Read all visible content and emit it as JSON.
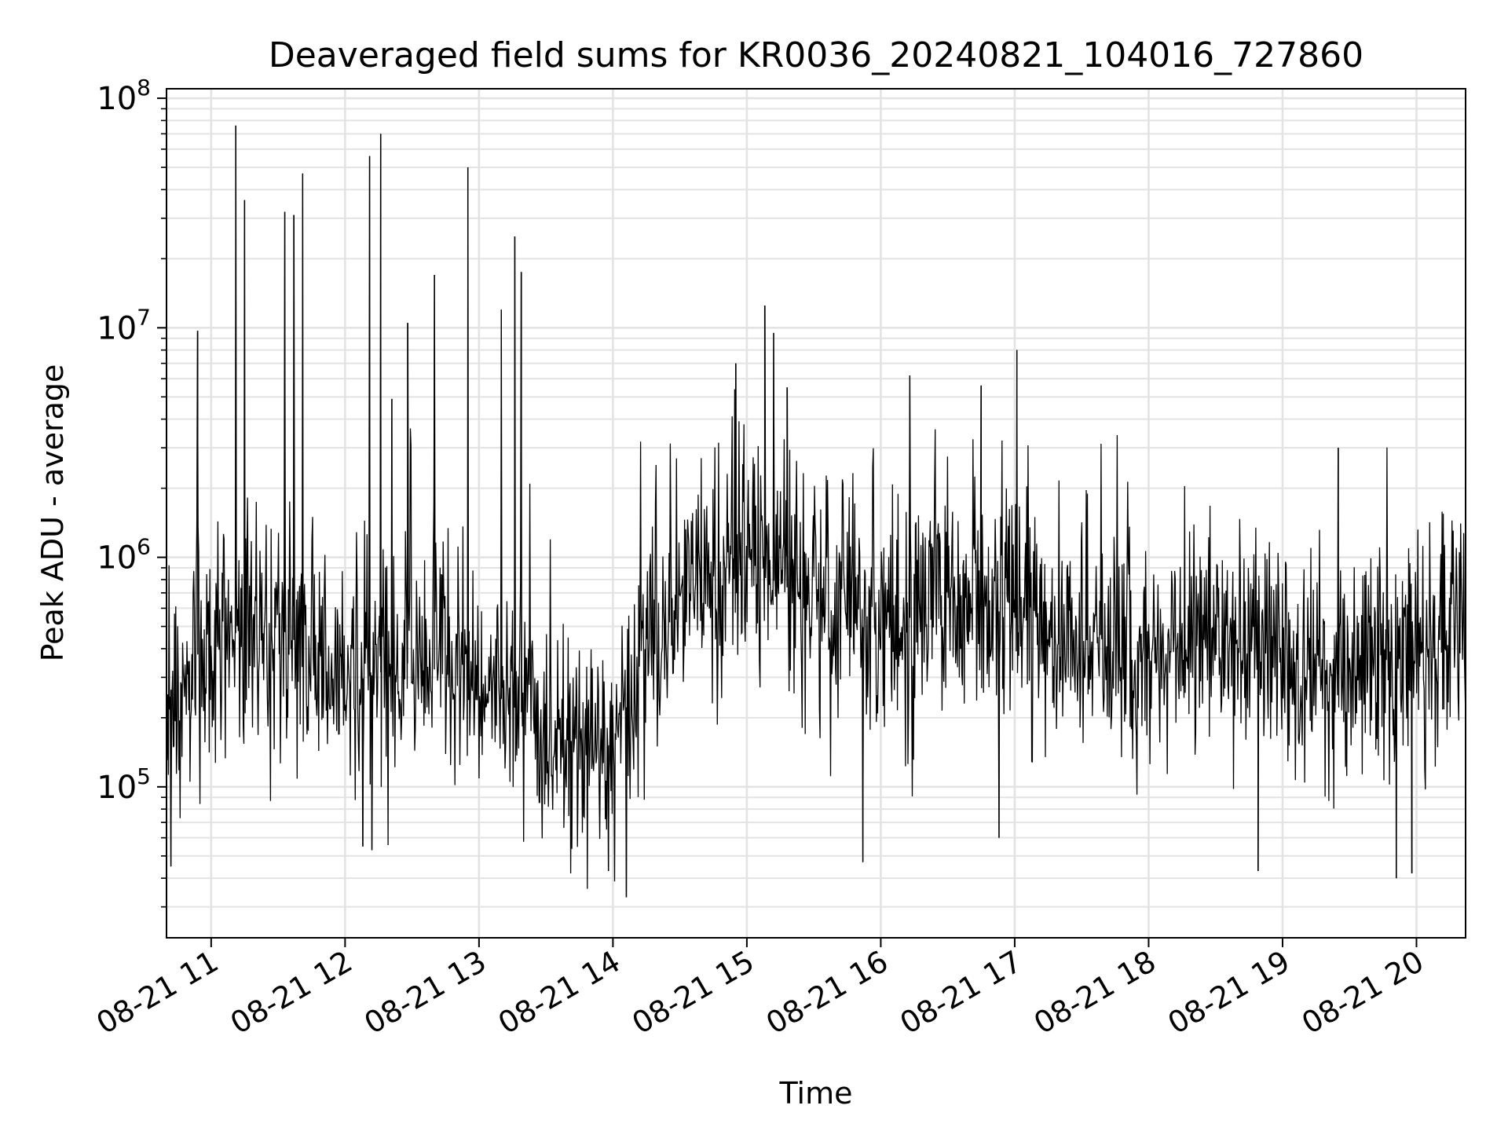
{
  "chart_data": {
    "type": "line",
    "title": "Deaveraged field sums for KR0036_20240821_104016_727860",
    "xlabel": "Time",
    "ylabel": "Peak ADU - average",
    "yscale": "log",
    "ylim": [
      22000,
      110000000
    ],
    "xlim": [
      "2024-08-21 10:40",
      "2024-08-21 20:22"
    ],
    "grid": true,
    "x_tick_labels": [
      "08-21 11",
      "08-21 12",
      "08-21 13",
      "08-21 14",
      "08-21 15",
      "08-21 16",
      "08-21 17",
      "08-21 18",
      "08-21 19",
      "08-21 20"
    ],
    "x_ticks": [
      "2024-08-21 11:00",
      "2024-08-21 12:00",
      "2024-08-21 13:00",
      "2024-08-21 14:00",
      "2024-08-21 15:00",
      "2024-08-21 16:00",
      "2024-08-21 17:00",
      "2024-08-21 18:00",
      "2024-08-21 19:00",
      "2024-08-21 20:00"
    ],
    "y_tick_base": "10",
    "y_tick_exponents": [
      "5",
      "6",
      "7",
      "8"
    ],
    "line_color": "#000000",
    "baseline": {
      "x": [
        "2024-08-21 10:40",
        "2024-08-21 11:00",
        "2024-08-21 11:30",
        "2024-08-21 12:00",
        "2024-08-21 12:30",
        "2024-08-21 13:00",
        "2024-08-21 13:30",
        "2024-08-21 14:00",
        "2024-08-21 14:15",
        "2024-08-21 14:30",
        "2024-08-21 15:00",
        "2024-08-21 15:30",
        "2024-08-21 16:00",
        "2024-08-21 16:30",
        "2024-08-21 17:00",
        "2024-08-21 17:30",
        "2024-08-21 18:00",
        "2024-08-21 18:30",
        "2024-08-21 19:00",
        "2024-08-21 19:30",
        "2024-08-21 20:00",
        "2024-08-21 20:22"
      ],
      "y": [
        250000,
        450000,
        500000,
        280000,
        350000,
        280000,
        180000,
        150000,
        400000,
        600000,
        900000,
        650000,
        450000,
        700000,
        550000,
        450000,
        350000,
        400000,
        350000,
        300000,
        330000,
        550000
      ]
    },
    "spikes": {
      "x": [
        "2024-08-21 10:54",
        "2024-08-21 11:11",
        "2024-08-21 11:15",
        "2024-08-21 11:33",
        "2024-08-21 11:37",
        "2024-08-21 11:41",
        "2024-08-21 12:11",
        "2024-08-21 12:16",
        "2024-08-21 12:21",
        "2024-08-21 12:28",
        "2024-08-21 12:40",
        "2024-08-21 12:55",
        "2024-08-21 13:10",
        "2024-08-21 13:16",
        "2024-08-21 13:19",
        "2024-08-21 14:55",
        "2024-08-21 15:08",
        "2024-08-21 15:12",
        "2024-08-21 15:18",
        "2024-08-21 16:13",
        "2024-08-21 16:45",
        "2024-08-21 17:01",
        "2024-08-21 19:25"
      ],
      "y": [
        9700000,
        76000000,
        36000000,
        32000000,
        31000000,
        47000000,
        56000000,
        70000000,
        4900000,
        10500000,
        17000000,
        50000000,
        12000000,
        25000000,
        17500000,
        7000000,
        12500000,
        9500000,
        5500000,
        6200000,
        5600000,
        8000000,
        3000000
      ]
    },
    "dips": {
      "x": [
        "2024-08-21 10:42",
        "2024-08-21 12:08",
        "2024-08-21 12:12",
        "2024-08-21 13:58",
        "2024-08-21 14:06",
        "2024-08-21 15:52",
        "2024-08-21 16:53",
        "2024-08-21 18:49",
        "2024-08-21 19:51",
        "2024-08-21 19:58"
      ],
      "y": [
        45000,
        55000,
        53000,
        43000,
        33000,
        47000,
        60000,
        43000,
        40000,
        42000
      ]
    }
  }
}
